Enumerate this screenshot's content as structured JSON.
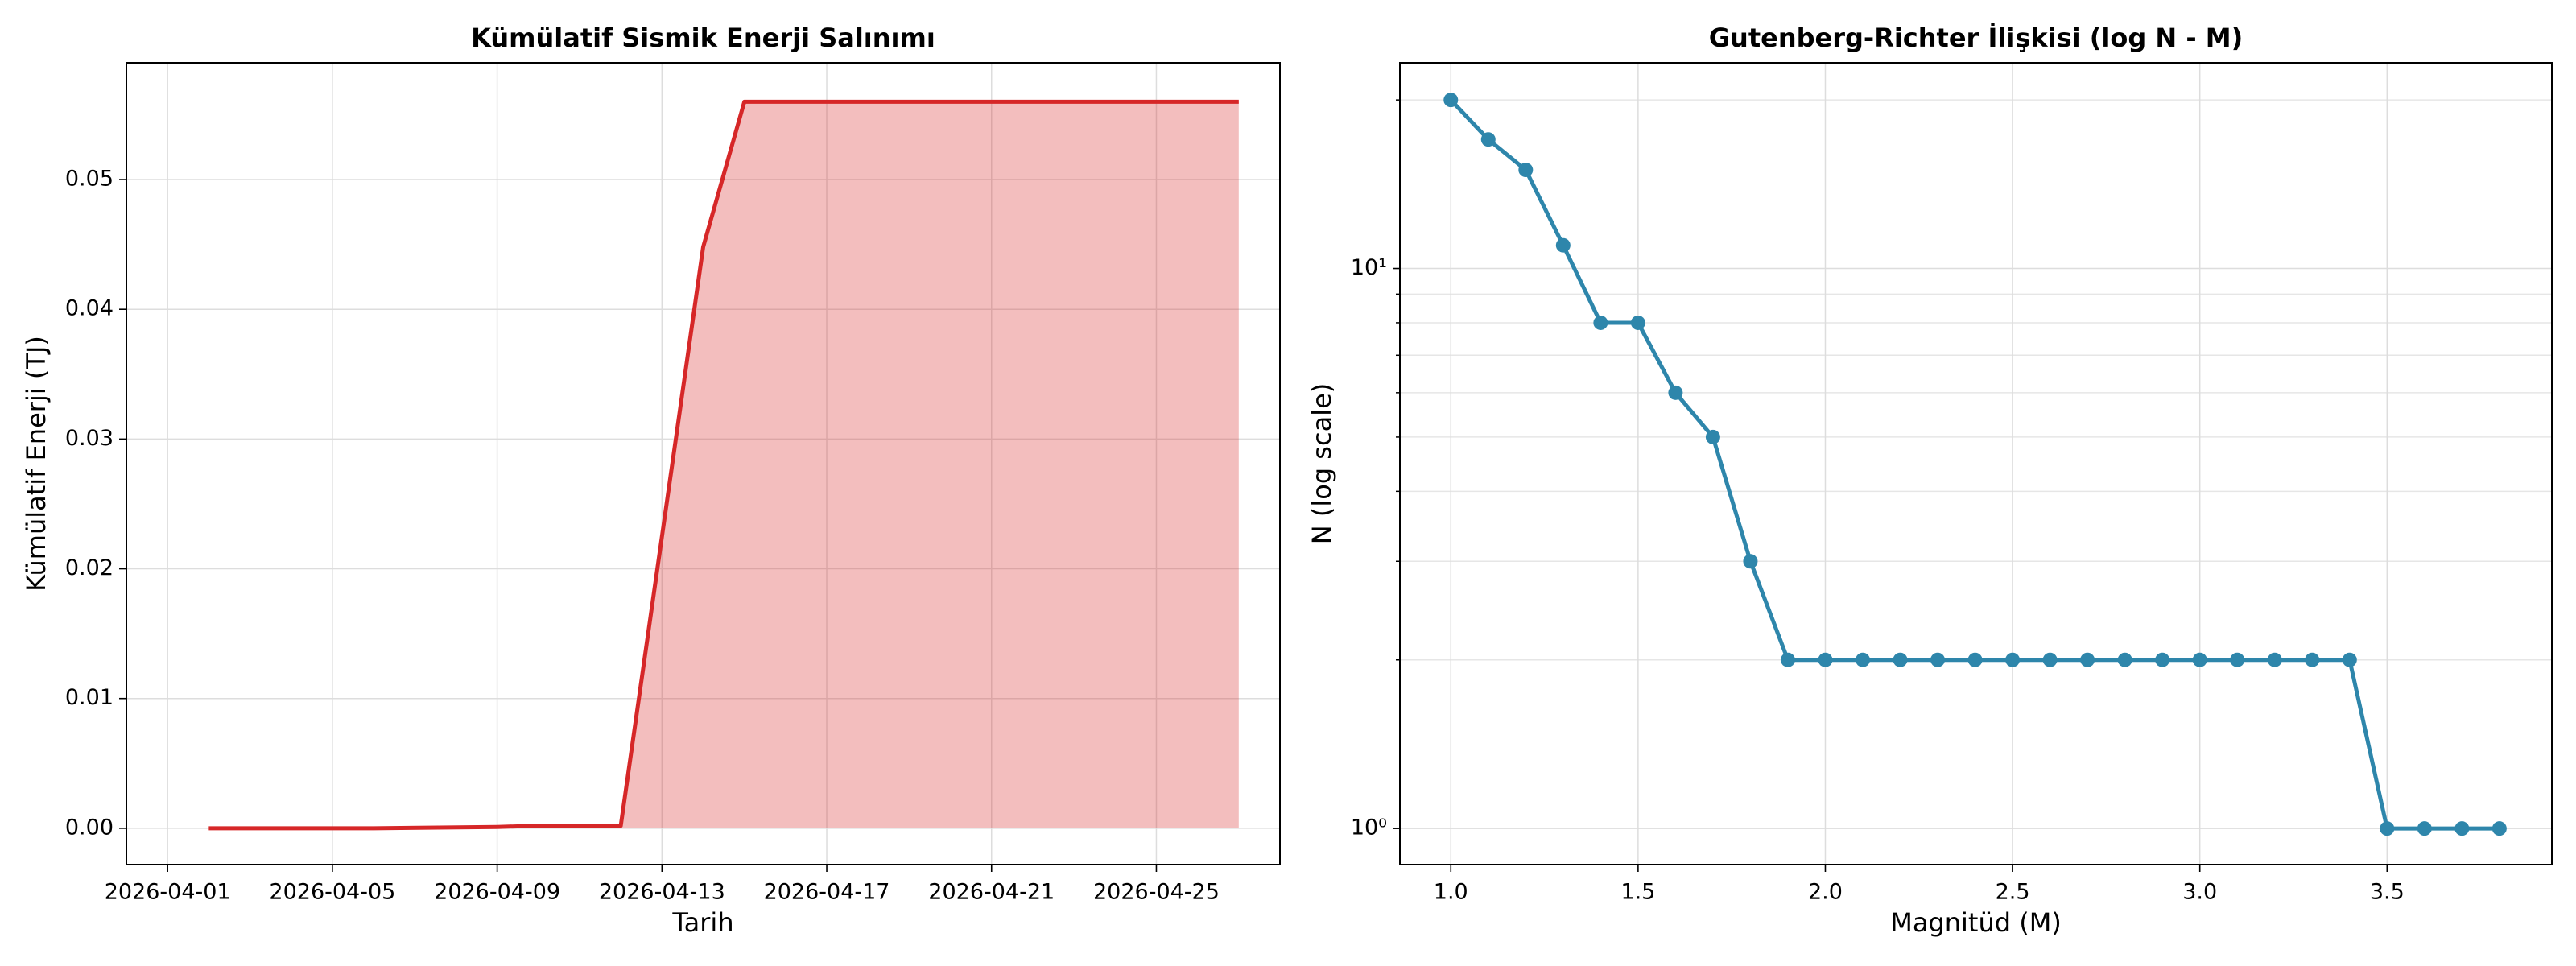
{
  "chart_data": [
    {
      "type": "area",
      "title": "Kümülatif Sismik Enerji Salınımı",
      "xlabel": "Tarih",
      "ylabel": "Kümülatif Enerji (TJ)",
      "x": [
        "2026-04-02",
        "2026-04-06",
        "2026-04-09",
        "2026-04-10",
        "2026-04-12",
        "2026-04-14",
        "2026-04-15",
        "2026-04-27"
      ],
      "values": [
        0,
        0,
        0.0001,
        0.0002,
        0.0002,
        0.0448,
        0.056,
        0.056
      ],
      "color": "#d62728",
      "fill_opacity": 0.3,
      "xlim": [
        "2026-03-31",
        "2026-04-28"
      ],
      "xticks": [
        "2026-04-01",
        "2026-04-05",
        "2026-04-09",
        "2026-04-13",
        "2026-04-17",
        "2026-04-21",
        "2026-04-25"
      ],
      "ylim": [
        -0.0028,
        0.059
      ],
      "yticks": [
        {
          "value": 0,
          "label": "0.00"
        },
        {
          "value": 0.01,
          "label": "0.01"
        },
        {
          "value": 0.02,
          "label": "0.02"
        },
        {
          "value": 0.03,
          "label": "0.03"
        },
        {
          "value": 0.04,
          "label": "0.04"
        },
        {
          "value": 0.05,
          "label": "0.05"
        }
      ],
      "grid": true
    },
    {
      "type": "line",
      "title": "Gutenberg-Richter İlişkisi (log N - M)",
      "xlabel": "Magnitüd (M)",
      "ylabel": "N (log scale)",
      "x": [
        1.0,
        1.1,
        1.2,
        1.3,
        1.4,
        1.5,
        1.6,
        1.7,
        1.8,
        1.9,
        2.0,
        2.1,
        2.2,
        2.3,
        2.4,
        2.5,
        2.6,
        2.7,
        2.8,
        2.9,
        3.0,
        3.1,
        3.2,
        3.3,
        3.4,
        3.5,
        3.6,
        3.7,
        3.8
      ],
      "values": [
        20,
        17,
        15,
        11,
        8,
        8,
        6,
        5,
        3,
        2,
        2,
        2,
        2,
        2,
        2,
        2,
        2,
        2,
        2,
        2,
        2,
        2,
        2,
        2,
        2,
        1,
        1,
        1,
        1
      ],
      "color": "#2e86ab",
      "markers": true,
      "log_y": true,
      "xlim": [
        0.864,
        3.94
      ],
      "xticks": [
        {
          "value": 1.0,
          "label": "1.0"
        },
        1.5,
        {
          "value": 2.0,
          "label": "2.0"
        },
        2.5,
        {
          "value": 3.0,
          "label": "3.0"
        },
        3.5
      ],
      "ylim": [
        0.862,
        23.3
      ],
      "yticks": [
        {
          "value": 1,
          "label": "10⁰"
        },
        {
          "value": 10,
          "label": "10¹"
        }
      ],
      "yminorticks": [
        2,
        3,
        4,
        5,
        6,
        7,
        8,
        9,
        20
      ],
      "grid": true
    }
  ]
}
